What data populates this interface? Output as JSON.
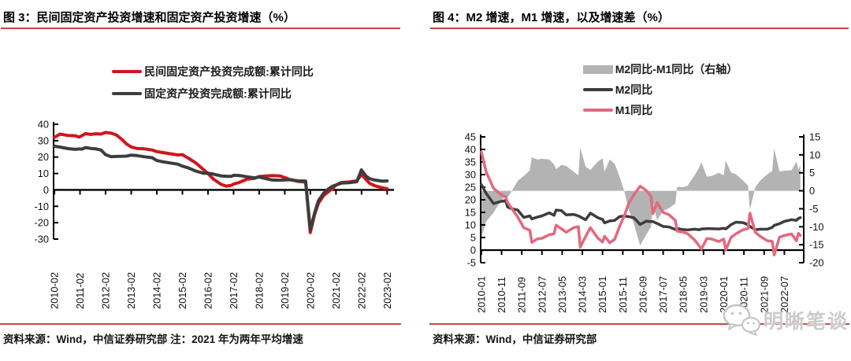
{
  "page": {
    "background": "#ffffff"
  },
  "colors": {
    "rule_red": "#cc4444",
    "axis_black": "#000000",
    "series_red": "#d0161c",
    "series_dark": "#3d3d3d",
    "series_pink": "#e2697f",
    "series_gray": "#b3b3b3",
    "watermark_gray": "#c9c9c9"
  },
  "watermark": {
    "text": "明晰笔谈",
    "icon": "wechat-logo-icon"
  },
  "panels": {
    "left": {
      "title": "图 3：民间固定资产投资增速和固定资产投资增速（%）",
      "source_note": "资料来源：Wind，中信证券研究部 注：2021 年为两年平均增速",
      "legend": [
        {
          "label": "民间固定资产投资完成额:累计同比",
          "color": "#d0161c",
          "marker": "line"
        },
        {
          "label": "固定资产投资完成额:累计同比",
          "color": "#3d3d3d",
          "marker": "line"
        }
      ]
    },
    "right": {
      "title": "图 4：M2 增速，M1 增速，以及增速差（%）",
      "source_note": "资料来源：Wind，中信证券研究部",
      "legend": [
        {
          "label": "M2同比-M1同比（右轴）",
          "color": "#b3b3b3",
          "marker": "bar"
        },
        {
          "label": "M2同比",
          "color": "#3d3d3d",
          "marker": "line"
        },
        {
          "label": "M1同比",
          "color": "#e2697f",
          "marker": "line"
        }
      ]
    }
  },
  "chart_data": [
    {
      "type": "line",
      "title": "图 3：民间固定资产投资增速和固定资产投资增速（%）",
      "ylabel": "%",
      "ylim": [
        -30,
        40
      ],
      "yticks": [
        40,
        30,
        20,
        10,
        0,
        -10,
        -20,
        -30
      ],
      "grid": false,
      "legend_position": "top-center",
      "x_range": [
        2010.05,
        2023.35
      ],
      "x_tick_labels": [
        "2010-02",
        "2011-02",
        "2012-02",
        "2013-02",
        "2014-02",
        "2015-02",
        "2016-02",
        "2017-02",
        "2018-02",
        "2019-02",
        "2020-02",
        "2021-02",
        "2022-02",
        "2023-02"
      ],
      "x": [
        2010.08,
        2010.3,
        2010.6,
        2010.9,
        2011.05,
        2011.15,
        2011.3,
        2011.5,
        2011.7,
        2011.9,
        2012.08,
        2012.3,
        2012.5,
        2012.7,
        2012.9,
        2013.08,
        2013.3,
        2013.6,
        2013.9,
        2014.08,
        2014.3,
        2014.6,
        2014.9,
        2015.08,
        2015.3,
        2015.6,
        2015.9,
        2016.08,
        2016.3,
        2016.6,
        2016.8,
        2017.0,
        2017.08,
        2017.3,
        2017.6,
        2017.9,
        2018.08,
        2018.3,
        2018.6,
        2018.9,
        2019.08,
        2019.3,
        2019.6,
        2019.9,
        2020.08,
        2020.25,
        2020.4,
        2020.6,
        2020.8,
        2020.95,
        2021.08,
        2021.3,
        2021.6,
        2021.9,
        2022.08,
        2022.25,
        2022.4,
        2022.6,
        2022.9,
        2023.08
      ],
      "series": [
        {
          "name": "民间固定资产投资完成额:累计同比",
          "type": "line",
          "axis": "left",
          "color": "#d0161c",
          "values": [
            32.0,
            34.0,
            33.2,
            33.0,
            32.2,
            33.0,
            34.3,
            33.8,
            34.2,
            34.0,
            35.0,
            34.6,
            33.5,
            31.0,
            28.0,
            26.2,
            25.3,
            25.0,
            24.3,
            23.3,
            22.8,
            22.0,
            21.3,
            21.5,
            19.5,
            16.5,
            12.5,
            10.0,
            6.5,
            3.3,
            2.3,
            2.8,
            3.5,
            4.5,
            6.5,
            7.0,
            8.1,
            8.4,
            8.7,
            8.5,
            7.5,
            6.2,
            5.2,
            4.7,
            -26.0,
            -15.0,
            -8.0,
            -3.5,
            -1.0,
            0.8,
            3.0,
            4.5,
            4.8,
            5.5,
            9.5,
            6.5,
            4.0,
            2.5,
            1.2,
            0.8
          ]
        },
        {
          "name": "固定资产投资完成额:累计同比",
          "type": "line",
          "axis": "left",
          "color": "#3d3d3d",
          "values": [
            26.6,
            26.1,
            25.2,
            24.7,
            25.0,
            24.8,
            25.8,
            25.3,
            25.0,
            24.3,
            21.5,
            20.2,
            20.4,
            20.5,
            20.6,
            21.2,
            20.9,
            20.2,
            19.6,
            17.9,
            17.2,
            16.4,
            15.7,
            14.5,
            13.5,
            11.5,
            10.2,
            10.2,
            9.6,
            8.5,
            8.3,
            8.2,
            8.9,
            8.8,
            8.0,
            7.3,
            7.9,
            7.0,
            6.0,
            5.9,
            6.1,
            6.2,
            5.5,
            5.4,
            -24.5,
            -14.0,
            -6.5,
            -2.0,
            0.8,
            2.2,
            2.9,
            4.2,
            4.4,
            5.0,
            12.2,
            8.5,
            6.8,
            6.0,
            5.3,
            5.5
          ]
        }
      ]
    },
    {
      "type": "line+area",
      "title": "图 4：M2 增速，M1 增速，以及增速差（%）",
      "left_ylim": [
        -5,
        45
      ],
      "left_yticks": [
        45,
        40,
        35,
        30,
        25,
        20,
        15,
        10,
        5,
        0,
        -5
      ],
      "right_ylim": [
        -20,
        15
      ],
      "right_yticks": [
        15,
        10,
        5,
        0,
        -5,
        -10,
        -15,
        -20
      ],
      "grid": false,
      "legend_position": "top-center",
      "x_range": [
        2009.97,
        2023.3
      ],
      "x_tick_labels": [
        "2010-01",
        "2010-11",
        "2011-09",
        "2012-07",
        "2013-05",
        "2014-03",
        "2015-01",
        "2015-11",
        "2016-09",
        "2017-07",
        "2018-05",
        "2019-03",
        "2020-01",
        "2020-11",
        "2021-09",
        "2022-07"
      ],
      "x": [
        2010.0,
        2010.2,
        2010.5,
        2010.8,
        2011.0,
        2011.08,
        2011.2,
        2011.5,
        2011.75,
        2012.0,
        2012.08,
        2012.3,
        2012.5,
        2012.8,
        2013.0,
        2013.08,
        2013.3,
        2013.5,
        2013.8,
        2014.0,
        2014.08,
        2014.3,
        2014.5,
        2014.8,
        2015.0,
        2015.08,
        2015.3,
        2015.5,
        2015.7,
        2015.9,
        2016.08,
        2016.3,
        2016.55,
        2016.8,
        2017.0,
        2017.08,
        2017.25,
        2017.5,
        2017.75,
        2018.0,
        2018.08,
        2018.3,
        2018.5,
        2018.8,
        2019.0,
        2019.08,
        2019.3,
        2019.5,
        2019.8,
        2020.0,
        2020.08,
        2020.3,
        2020.5,
        2020.8,
        2021.0,
        2021.08,
        2021.3,
        2021.5,
        2021.8,
        2022.0,
        2022.08,
        2022.3,
        2022.5,
        2022.8,
        2023.0,
        2023.08,
        2023.16
      ],
      "series": [
        {
          "name": "M2同比-M1同比（右轴）",
          "type": "area",
          "axis": "right",
          "color": "#b3b3b3",
          "values": [
            -13.0,
            -8.5,
            -6.1,
            -2.8,
            -1.5,
            -1.8,
            -0.7,
            2.8,
            4.1,
            5.7,
            9.3,
            8.7,
            8.9,
            8.7,
            7.3,
            6.0,
            7.2,
            6.9,
            5.3,
            4.3,
            12.0,
            6.7,
            5.8,
            8.1,
            9.0,
            5.3,
            8.7,
            7.5,
            4.0,
            -0.2,
            -5.3,
            -9.3,
            -15.2,
            -12.2,
            -10.1,
            -3.2,
            -8.2,
            -5.6,
            -4.8,
            -3.6,
            1.1,
            1.0,
            1.4,
            4.3,
            6.6,
            8.0,
            3.9,
            4.1,
            5.0,
            4.3,
            8.4,
            5.1,
            4.6,
            2.8,
            1.5,
            -5.3,
            1.0,
            2.8,
            4.6,
            5.5,
            11.7,
            5.4,
            5.6,
            5.7,
            8.1,
            5.9,
            7.1
          ]
        },
        {
          "name": "M2同比",
          "type": "line",
          "axis": "left",
          "color": "#3d3d3d",
          "values": [
            26.0,
            22.5,
            18.5,
            19.3,
            19.7,
            17.2,
            16.6,
            15.9,
            13.0,
            13.6,
            12.4,
            13.1,
            13.6,
            14.8,
            13.8,
            15.9,
            15.7,
            14.0,
            14.2,
            13.6,
            13.2,
            12.1,
            14.7,
            12.9,
            12.2,
            10.8,
            11.6,
            11.8,
            13.3,
            13.5,
            13.3,
            12.8,
            10.2,
            11.5,
            11.3,
            11.3,
            10.6,
            9.4,
            9.2,
            8.2,
            8.6,
            8.2,
            8.0,
            8.3,
            8.1,
            8.4,
            8.5,
            8.5,
            8.4,
            8.7,
            8.4,
            10.1,
            11.1,
            10.9,
            10.1,
            9.4,
            8.1,
            8.3,
            8.3,
            9.0,
            9.8,
            10.5,
            11.4,
            12.1,
            11.8,
            12.6,
            12.9
          ]
        },
        {
          "name": "M1同比",
          "type": "line",
          "axis": "left",
          "color": "#e2697f",
          "values": [
            39.0,
            31.0,
            24.6,
            22.1,
            21.2,
            19.0,
            17.3,
            13.1,
            8.9,
            7.9,
            3.1,
            4.4,
            4.7,
            6.1,
            6.5,
            9.9,
            8.5,
            7.1,
            8.9,
            9.3,
            1.2,
            5.4,
            8.9,
            4.8,
            3.2,
            5.5,
            2.9,
            4.3,
            9.3,
            13.7,
            18.6,
            22.1,
            25.4,
            23.7,
            21.4,
            14.5,
            18.8,
            15.0,
            14.0,
            11.8,
            7.5,
            7.2,
            6.6,
            4.0,
            1.5,
            0.4,
            4.6,
            4.4,
            3.4,
            4.4,
            0.0,
            5.0,
            6.5,
            8.1,
            8.6,
            14.7,
            7.1,
            5.5,
            3.7,
            3.5,
            -1.9,
            5.1,
            5.8,
            6.4,
            3.7,
            6.7,
            5.8
          ]
        }
      ]
    }
  ]
}
